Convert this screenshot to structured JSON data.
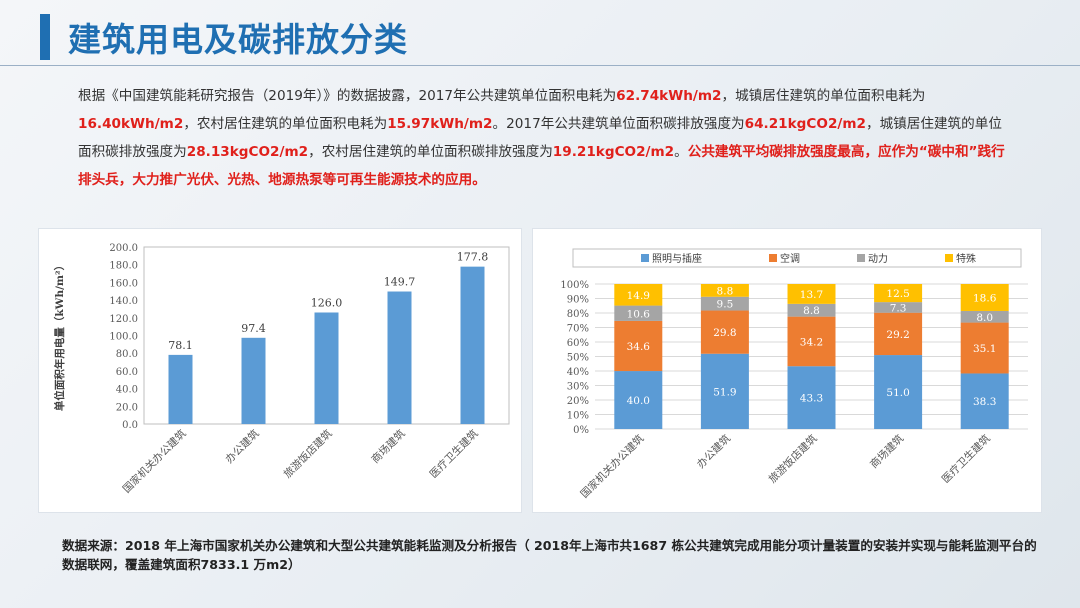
{
  "title": "建筑用电及碳排放分类",
  "intro": {
    "t1": "根据《中国建筑能耗研究报告（2019年）》的数据披露，2017年公共建筑单位面积电耗为",
    "v1": "62.74kWh/m2",
    "t2": "，城镇居住建筑的单位面积电耗为",
    "v2": "16.40kWh/m2",
    "t3": "，农村居住建筑的单位面积电耗为",
    "v3": "15.97kWh/m2",
    "t4": "。2017年公共建筑单位面积碳排放强度为",
    "v4": "64.21kgCO2/m2",
    "t5": "，城镇居住建筑的单位面积碳排放强度为",
    "v5": "28.13kgCO2/m2",
    "t6": "，农村居住建筑的单位面积碳排放强度为",
    "v6": "19.21kgCO2/m2",
    "t7": "。",
    "v7": "公共建筑平均碳排放强度最高，应作为“碳中和”践行排头兵，大力推广光伏、光热、地源热泵等可再生能源技术的应用。"
  },
  "source": "数据来源：2018 年上海市国家机关办公建筑和大型公共建筑能耗监测及分析报告（ 2018年上海市共1687 栋公共建筑完成用能分项计量装置的安装并实现与能耗监测平台的数据联网，覆盖建筑面积7833.1 万m2）",
  "chart_data": [
    {
      "type": "bar",
      "title": "",
      "xlabel": "",
      "ylabel": "单位面积年用电量（kWh/m²）",
      "categories": [
        "国家机关办公建筑",
        "办公建筑",
        "旅游饭店建筑",
        "商场建筑",
        "医疗卫生建筑"
      ],
      "values": [
        78.1,
        97.4,
        126.0,
        149.7,
        177.8
      ],
      "ylim": [
        0,
        200
      ],
      "yticks": [
        "0.0",
        "20.0",
        "40.0",
        "60.0",
        "80.0",
        "100.0",
        "120.0",
        "140.0",
        "160.0",
        "180.0",
        "200.0"
      ],
      "value_labels": [
        "78.1",
        "97.4",
        "126.0",
        "149.7",
        "177.8"
      ],
      "color": "#5b9bd5",
      "grid": false
    },
    {
      "type": "bar",
      "stacked": true,
      "title": "",
      "categories": [
        "国家机关办公建筑",
        "办公建筑",
        "旅游饭店建筑",
        "商场建筑",
        "医疗卫生建筑"
      ],
      "ylim": [
        0,
        100
      ],
      "yticks": [
        "0%",
        "10%",
        "20%",
        "30%",
        "40%",
        "50%",
        "60%",
        "70%",
        "80%",
        "90%",
        "100%"
      ],
      "legend_position": "top",
      "grid": true,
      "series": [
        {
          "name": "照明与插座",
          "color": "#5b9bd5",
          "values": [
            40.0,
            51.9,
            43.3,
            51.0,
            38.3
          ],
          "labels": [
            "40.0",
            "51.9",
            "43.3",
            "51.0",
            "38.3"
          ]
        },
        {
          "name": "空调",
          "color": "#ed7d31",
          "values": [
            34.6,
            29.8,
            34.2,
            29.2,
            35.1
          ],
          "labels": [
            "34.6",
            "29.8",
            "34.2",
            "29.2",
            "35.1"
          ]
        },
        {
          "name": "动力",
          "color": "#a5a5a5",
          "values": [
            10.6,
            9.5,
            8.8,
            7.3,
            8.0
          ],
          "labels": [
            "10.6",
            "9.5",
            "8.8",
            "7.3",
            "8.0"
          ]
        },
        {
          "name": "特殊",
          "color": "#ffc000",
          "values": [
            14.9,
            8.8,
            13.7,
            12.5,
            18.6
          ],
          "labels": [
            "14.9",
            "8.8",
            "13.7",
            "12.5",
            "18.6"
          ]
        }
      ]
    }
  ]
}
